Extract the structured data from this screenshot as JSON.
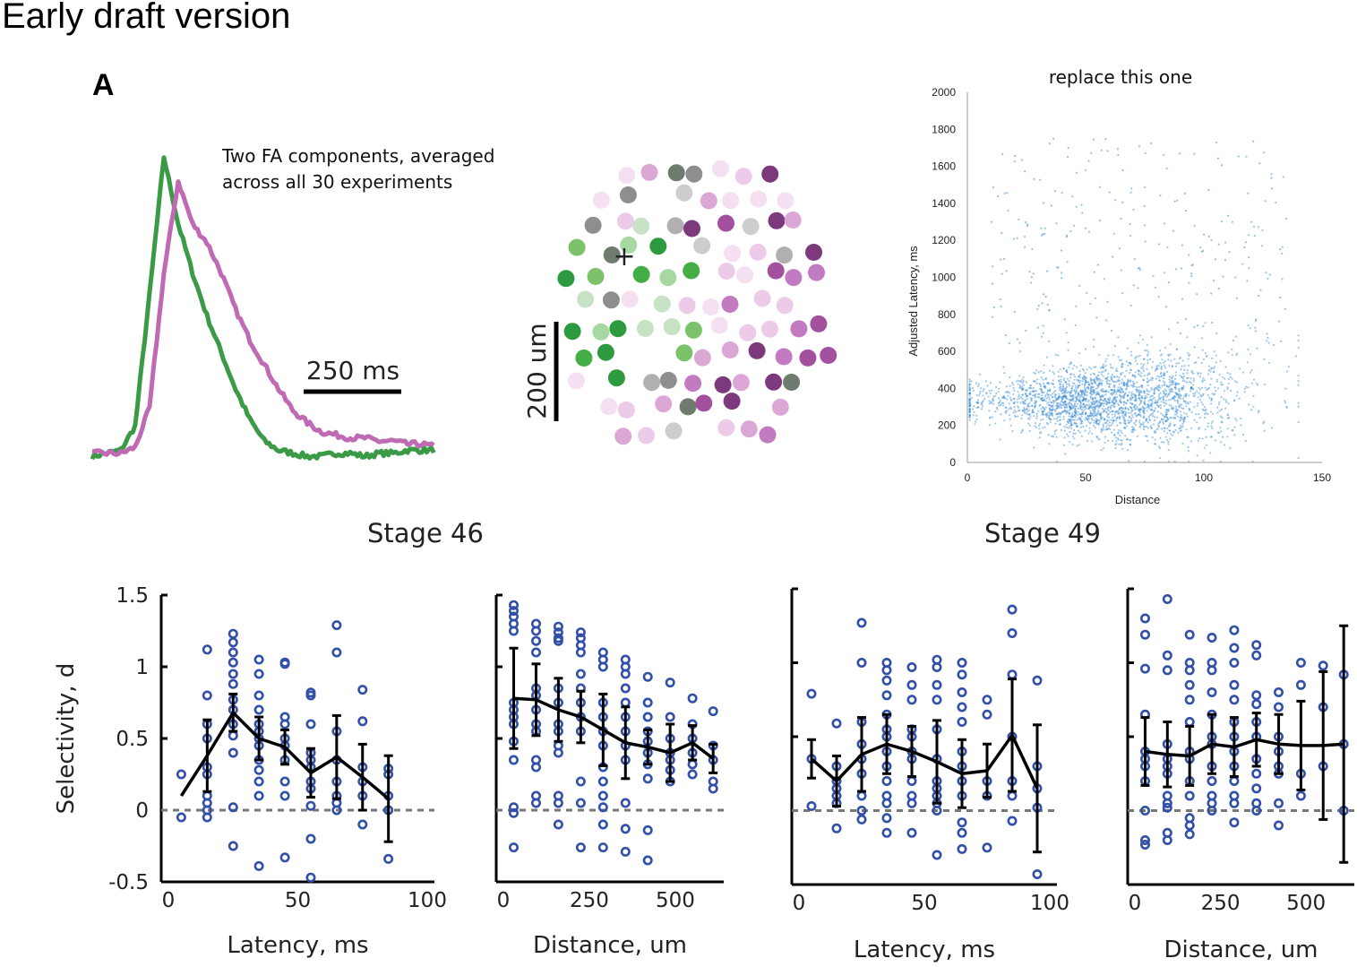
{
  "header": {
    "title": "Early draft version",
    "panel_label": "A"
  },
  "trace_panel": {
    "annotation_line1": "Two FA components, averaged",
    "annotation_line2": "across all 30 experiments",
    "scalebar_label": "250 ms",
    "colors": {
      "component1": "#3a9a45",
      "component2": "#c06ab4"
    }
  },
  "map_panel": {
    "scalebar_label": "200 um",
    "marker": "+"
  },
  "stage_labels": {
    "left": "Stage 46",
    "right": "Stage 49"
  },
  "chart_data": [
    {
      "type": "line",
      "series": [
        {
          "name": "",
          "color": "#3a9a45",
          "values": [
            0.02,
            0.03,
            0.04,
            0.12,
            0.55,
            1.0,
            0.78,
            0.62,
            0.48,
            0.36,
            0.24,
            0.14,
            0.07,
            0.04,
            0.03,
            0.02,
            0.02,
            0.03,
            0.03,
            0.02,
            0.03,
            0.03,
            0.04,
            0.04,
            0.04
          ]
        },
        {
          "name": "",
          "color": "#c06ab4",
          "values": [
            0.03,
            0.03,
            0.03,
            0.05,
            0.18,
            0.62,
            0.92,
            0.78,
            0.72,
            0.62,
            0.5,
            0.4,
            0.32,
            0.24,
            0.17,
            0.13,
            0.1,
            0.09,
            0.08,
            0.08,
            0.07,
            0.07,
            0.06,
            0.06,
            0.05
          ]
        }
      ]
    },
    {
      "type": "scatter",
      "title": "replace this one",
      "xlabel": "Distance",
      "ylabel": "Adjusted Latency, ms",
      "xlim": [
        0,
        150
      ],
      "ylim": [
        0,
        2000
      ],
      "xticks": [
        "0",
        "50",
        "100",
        "150"
      ],
      "yticks": [
        "0",
        "200",
        "400",
        "600",
        "800",
        "1000",
        "1200",
        "1400",
        "1600",
        "1800",
        "2000"
      ],
      "color": "#2b83d0"
    },
    {
      "type": "line",
      "stage": "Stage 46",
      "xlabel": "Latency, ms",
      "ylabel": "Selectivity, d",
      "xlim": [
        0,
        100
      ],
      "ylim": [
        -0.5,
        1.5
      ],
      "xticks": [
        "0",
        "50",
        "100"
      ],
      "yticks": [
        "-0.5",
        "0",
        "0.5",
        "1",
        "1.5"
      ],
      "x": [
        5,
        15,
        25,
        35,
        45,
        55,
        65,
        75,
        85
      ],
      "mean": [
        0.1,
        0.38,
        0.68,
        0.5,
        0.44,
        0.26,
        0.37,
        0.23,
        0.08
      ],
      "err": [
        0.0,
        0.25,
        0.13,
        0.15,
        0.12,
        0.17,
        0.29,
        0.23,
        0.3
      ],
      "points": [
        [
          0.25,
          -0.05
        ],
        [
          1.12,
          0.8,
          0.6,
          0.5,
          0.3,
          0.25,
          0.1,
          0.05,
          0,
          -0.05
        ],
        [
          1.23,
          1.17,
          1.1,
          1.03,
          0.95,
          0.88,
          0.77,
          0.7,
          0.6,
          0.52,
          0.4,
          0.02,
          -0.25
        ],
        [
          1.05,
          0.95,
          0.8,
          0.7,
          0.6,
          0.55,
          0.5,
          0.45,
          0.35,
          0.28,
          0.2,
          0.1,
          -0.39
        ],
        [
          1.03,
          1.02,
          0.65,
          0.6,
          0.5,
          0.45,
          0.35,
          0.2,
          0.1,
          -0.33
        ],
        [
          0.82,
          0.8,
          0.6,
          0.4,
          0.35,
          0.3,
          0.2,
          0.15,
          0.03,
          -0.2,
          -0.47
        ],
        [
          1.29,
          1.1,
          0.55,
          0.35,
          0.2,
          0.1,
          0.05,
          0.0
        ],
        [
          0.84,
          0.62,
          0.3,
          0.2,
          0.1,
          -0.1
        ],
        [
          0.29,
          0.25,
          0.1,
          0.0,
          -0.34
        ]
      ]
    },
    {
      "type": "line",
      "stage": "Stage 46",
      "xlabel": "Distance, um",
      "ylabel": "",
      "xlim": [
        0,
        620
      ],
      "ylim": [
        -0.5,
        1.5
      ],
      "xticks": [
        "0",
        "250",
        "500"
      ],
      "yticks": [],
      "x": [
        30,
        95,
        160,
        225,
        290,
        355,
        420,
        485,
        550,
        610
      ],
      "mean": [
        0.78,
        0.77,
        0.7,
        0.65,
        0.56,
        0.47,
        0.44,
        0.4,
        0.47,
        0.36
      ],
      "err": [
        0.35,
        0.25,
        0.22,
        0.18,
        0.25,
        0.25,
        0.12,
        0.2,
        0.12,
        0.1
      ],
      "points": [
        [
          1.43,
          1.39,
          1.35,
          1.3,
          1.25,
          0.75,
          0.7,
          0.65,
          0.6,
          0.48,
          0.35,
          0.02,
          -0.02,
          -0.26
        ],
        [
          1.3,
          1.25,
          1.18,
          1.1,
          0.85,
          0.8,
          0.7,
          0.6,
          0.55,
          0.35,
          0.3,
          0.1,
          0.05
        ],
        [
          1.28,
          1.24,
          1.2,
          1.18,
          0.85,
          0.75,
          0.6,
          0.55,
          0.45,
          0.4,
          0.1,
          0.05,
          -0.1
        ],
        [
          1.24,
          1.2,
          1.15,
          1.1,
          0.95,
          0.85,
          0.75,
          0.65,
          0.55,
          0.2,
          0.05,
          -0.26
        ],
        [
          1.1,
          1.05,
          1.0,
          0.75,
          0.65,
          0.55,
          0.45,
          0.3,
          0.2,
          0.1,
          0.02,
          -0.1,
          -0.26
        ],
        [
          1.05,
          1.0,
          0.95,
          0.85,
          0.75,
          0.65,
          0.55,
          0.45,
          0.35,
          0.05,
          -0.13,
          -0.29
        ],
        [
          0.93,
          0.75,
          0.65,
          0.55,
          0.48,
          0.4,
          0.32,
          0.22,
          -0.14,
          -0.35
        ],
        [
          0.89,
          0.65,
          0.5,
          0.4,
          0.35,
          0.28,
          0.2
        ],
        [
          0.78,
          0.6,
          0.5,
          0.4,
          0.32,
          0.25
        ],
        [
          0.69,
          0.45,
          0.35,
          0.2,
          0.15
        ]
      ]
    },
    {
      "type": "line",
      "stage": "Stage 49",
      "xlabel": "Latency, ms",
      "ylabel": "",
      "xlim": [
        0,
        100
      ],
      "ylim": [
        -0.5,
        1.5
      ],
      "xticks": [
        "0",
        "50",
        "100"
      ],
      "yticks": [],
      "x": [
        5,
        15,
        25,
        35,
        45,
        55,
        65,
        75,
        85,
        95
      ],
      "mean": [
        0.35,
        0.2,
        0.38,
        0.45,
        0.4,
        0.33,
        0.25,
        0.27,
        0.51,
        0.15
      ],
      "err": [
        0.13,
        0.17,
        0.25,
        0.2,
        0.17,
        0.28,
        0.23,
        0.18,
        0.38,
        0.43
      ],
      "points": [
        [
          0.79,
          0.35,
          0.03
        ],
        [
          0.59,
          0.3,
          0.2,
          0.15,
          0.1,
          0.05,
          -0.12
        ],
        [
          1.27,
          1.0,
          0.6,
          0.45,
          0.35,
          0.25,
          0.1,
          0.0,
          -0.06
        ],
        [
          1.0,
          0.95,
          0.88,
          0.78,
          0.65,
          0.55,
          0.5,
          0.4,
          0.3,
          0.2,
          0.1,
          0.05,
          -0.05,
          -0.15
        ],
        [
          0.97,
          0.85,
          0.75,
          0.55,
          0.5,
          0.4,
          0.35,
          0.2,
          0.1,
          0.05,
          -0.15
        ],
        [
          1.02,
          0.97,
          0.85,
          0.75,
          0.55,
          0.35,
          0.2,
          0.15,
          0.1,
          0.05,
          0.0,
          -0.3
        ],
        [
          1.0,
          0.92,
          0.8,
          0.7,
          0.6,
          0.4,
          0.3,
          0.2,
          0.1,
          -0.08,
          -0.15,
          -0.26
        ],
        [
          0.75,
          0.65,
          0.2,
          0.1,
          -0.25
        ],
        [
          1.36,
          1.2,
          0.92,
          0.5,
          0.2,
          0.1,
          -0.07
        ],
        [
          0.88,
          0.3,
          0.15,
          0.02,
          -0.43
        ]
      ]
    },
    {
      "type": "line",
      "stage": "Stage 49",
      "xlabel": "Distance, um",
      "ylabel": "",
      "xlim": [
        0,
        620
      ],
      "ylim": [
        -0.5,
        1.5
      ],
      "xticks": [
        "0",
        "250",
        "500"
      ],
      "yticks": [],
      "x": [
        30,
        95,
        160,
        225,
        290,
        355,
        420,
        485,
        550,
        610
      ],
      "mean": [
        0.4,
        0.38,
        0.37,
        0.45,
        0.43,
        0.48,
        0.45,
        0.44,
        0.44,
        0.45
      ],
      "err": [
        0.23,
        0.22,
        0.2,
        0.2,
        0.2,
        0.18,
        0.2,
        0.3,
        0.5,
        0.8
      ],
      "points": [
        [
          1.3,
          1.19,
          0.96,
          0.65,
          0.4,
          0.35,
          0.3,
          0.2,
          0.0,
          -0.2,
          -0.23
        ],
        [
          1.43,
          1.05,
          0.95,
          0.45,
          0.35,
          0.3,
          0.25,
          0.1,
          0.05,
          0.02,
          -0.15,
          -0.2
        ],
        [
          1.19,
          1.0,
          0.95,
          0.85,
          0.75,
          0.6,
          0.4,
          0.35,
          0.2,
          0.1,
          -0.05,
          -0.1,
          -0.16
        ],
        [
          1.17,
          1.0,
          0.95,
          0.8,
          0.65,
          0.5,
          0.45,
          0.3,
          0.2,
          0.1,
          0.05,
          0.0
        ],
        [
          1.22,
          1.1,
          1.0,
          0.85,
          0.75,
          0.6,
          0.5,
          0.4,
          0.3,
          0.2,
          0.1,
          0.05,
          -0.08
        ],
        [
          1.12,
          1.05,
          0.78,
          0.72,
          0.6,
          0.5,
          0.35,
          0.25,
          0.15,
          0.05,
          0.0
        ],
        [
          0.8,
          0.7,
          0.5,
          0.4,
          0.3,
          0.25,
          0.05,
          -0.1
        ],
        [
          1.0,
          0.85,
          0.25,
          0.1
        ],
        [
          0.98,
          0.7,
          0.3
        ],
        [
          0.92,
          0.45,
          0.0
        ]
      ]
    }
  ]
}
